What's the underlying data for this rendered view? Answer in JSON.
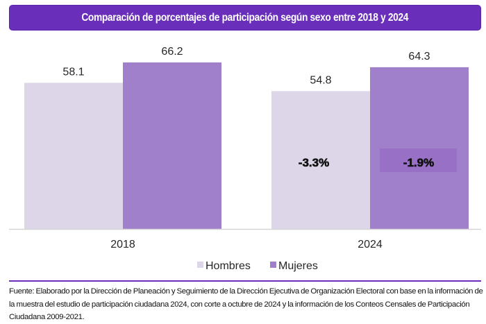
{
  "header": {
    "title": "Comparación de porcentajes de participación según sexo entre 2018 y 2024"
  },
  "colors": {
    "banner": "#6a2fba",
    "hombres": "#dcd6e8",
    "mujeres": "#a07fcb",
    "highlight_box": "#9870c6",
    "axis": "#d4d4d4",
    "text": "#262626"
  },
  "chart_data": {
    "type": "bar",
    "title": "Comparación de porcentajes de participación según sexo entre 2018 y 2024",
    "categories": [
      "2018",
      "2024"
    ],
    "series": [
      {
        "name": "Hombres",
        "values": [
          58.1,
          54.8
        ],
        "labels": [
          "58.1",
          "54.8"
        ]
      },
      {
        "name": "Mujeres",
        "values": [
          66.2,
          64.3
        ],
        "labels": [
          "66.2",
          "64.3"
        ]
      }
    ],
    "annotations": [
      {
        "category": "2024",
        "series": "Hombres",
        "text": "-3.3%"
      },
      {
        "category": "2024",
        "series": "Mujeres",
        "text": "-1.9%"
      }
    ],
    "xlabel": "",
    "ylabel": "",
    "ylim": [
      0,
      70
    ],
    "grid": false,
    "legend": {
      "position": "bottom",
      "entries": [
        "Hombres",
        "Mujeres"
      ]
    }
  },
  "footer": {
    "source": "Fuente: Elaborado por la Dirección de Planeación y Seguimiento de la Dirección Ejecutiva de Organización Electoral con base en la información de la muestra del estudio de participación ciudadana 2024, con corte a octubre de 2024 y la información de los Conteos Censales de Participación Ciudadana 2009-2021."
  }
}
